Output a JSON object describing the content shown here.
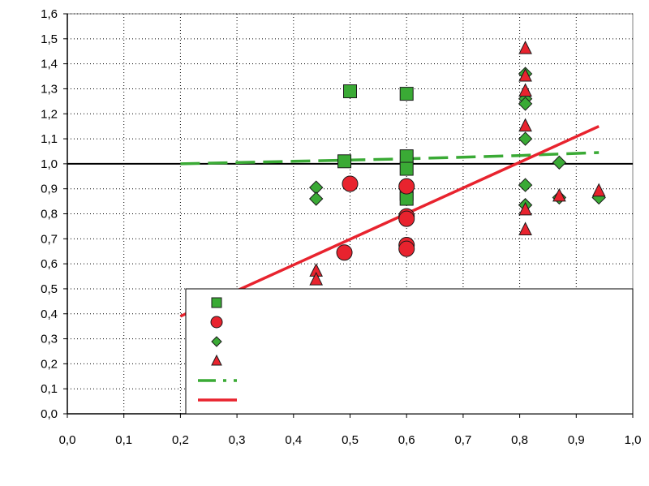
{
  "chart_data": {
    "type": "scatter",
    "title": "",
    "xlabel": "",
    "ylabel": "",
    "xlim": [
      0.0,
      1.0
    ],
    "ylim": [
      0.0,
      1.6
    ],
    "x_ticks": [
      "0,0",
      "0,1",
      "0,2",
      "0,3",
      "0,4",
      "0,5",
      "0,6",
      "0,7",
      "0,8",
      "0,9",
      "1,0"
    ],
    "y_ticks": [
      "0,0",
      "0,1",
      "0,2",
      "0,3",
      "0,4",
      "0,5",
      "0,6",
      "0,7",
      "0,8",
      "0,9",
      "1,0",
      "1,1",
      "1,2",
      "1,3",
      "1,4",
      "1,5",
      "1,6"
    ],
    "grid": true,
    "reference_line_y": 1.0,
    "legend_position": "bottom-right",
    "colors": {
      "green": "#3aaa35",
      "red": "#e8232e",
      "axis": "#000000",
      "frame": "#808080"
    },
    "series": [
      {
        "marker": "square",
        "color": "#3aaa35",
        "points": [
          [
            0.5,
            1.29
          ],
          [
            0.6,
            1.28
          ],
          [
            0.49,
            1.01
          ],
          [
            0.6,
            1.03
          ],
          [
            0.6,
            0.98
          ],
          [
            0.6,
            0.88
          ],
          [
            0.6,
            0.86
          ]
        ]
      },
      {
        "marker": "circle",
        "color": "#e8232e",
        "points": [
          [
            0.5,
            0.92
          ],
          [
            0.6,
            0.91
          ],
          [
            0.6,
            0.79
          ],
          [
            0.6,
            0.78
          ],
          [
            0.6,
            0.675
          ],
          [
            0.6,
            0.66
          ],
          [
            0.49,
            0.645
          ]
        ]
      },
      {
        "marker": "diamond",
        "color": "#3aaa35",
        "points": [
          [
            0.44,
            0.905
          ],
          [
            0.44,
            0.86
          ],
          [
            0.81,
            1.36
          ],
          [
            0.81,
            1.26
          ],
          [
            0.81,
            1.24
          ],
          [
            0.81,
            1.1
          ],
          [
            0.81,
            0.915
          ],
          [
            0.81,
            0.835
          ],
          [
            0.87,
            1.005
          ],
          [
            0.87,
            0.865
          ],
          [
            0.94,
            0.865
          ]
        ]
      },
      {
        "marker": "triangle",
        "color": "#e8232e",
        "points": [
          [
            0.44,
            0.57
          ],
          [
            0.44,
            0.535
          ],
          [
            0.81,
            1.46
          ],
          [
            0.81,
            1.35
          ],
          [
            0.81,
            1.29
          ],
          [
            0.81,
            1.15
          ],
          [
            0.81,
            0.815
          ],
          [
            0.81,
            0.735
          ],
          [
            0.87,
            0.87
          ],
          [
            0.94,
            0.89
          ]
        ]
      },
      {
        "type": "line",
        "style": "dashed",
        "color": "#3aaa35",
        "points": [
          [
            0.2,
            1.0
          ],
          [
            0.4,
            1.01
          ],
          [
            0.6,
            1.02
          ],
          [
            0.8,
            1.033
          ],
          [
            0.94,
            1.045
          ]
        ]
      },
      {
        "type": "line",
        "style": "solid",
        "color": "#e8232e",
        "points": [
          [
            0.2,
            0.39
          ],
          [
            0.94,
            1.15
          ]
        ]
      }
    ]
  }
}
